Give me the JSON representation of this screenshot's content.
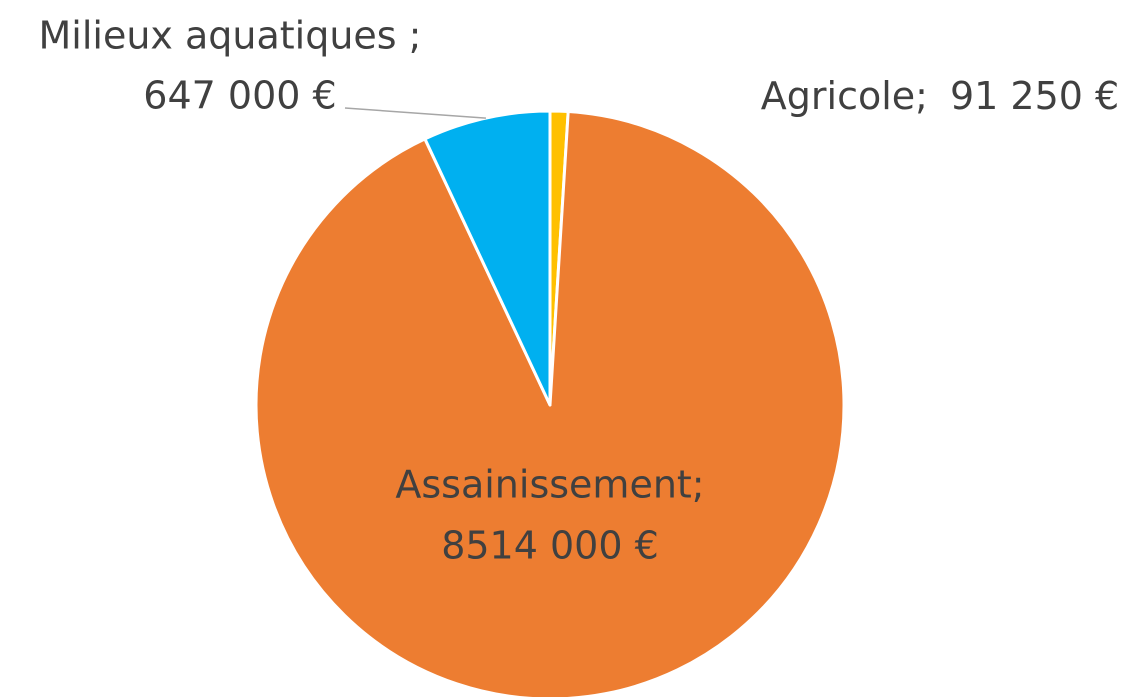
{
  "chart_data": {
    "type": "pie",
    "categories": [
      "Agricole;",
      "Assainissement;",
      "Milieux aquatiques ;"
    ],
    "values": [
      91250,
      8514000,
      647000
    ],
    "value_labels": [
      "91 250 €",
      "8514 000 €",
      "647 000 €"
    ],
    "colors": [
      "#ffc000",
      "#ed7d31",
      "#00b0f0"
    ]
  }
}
